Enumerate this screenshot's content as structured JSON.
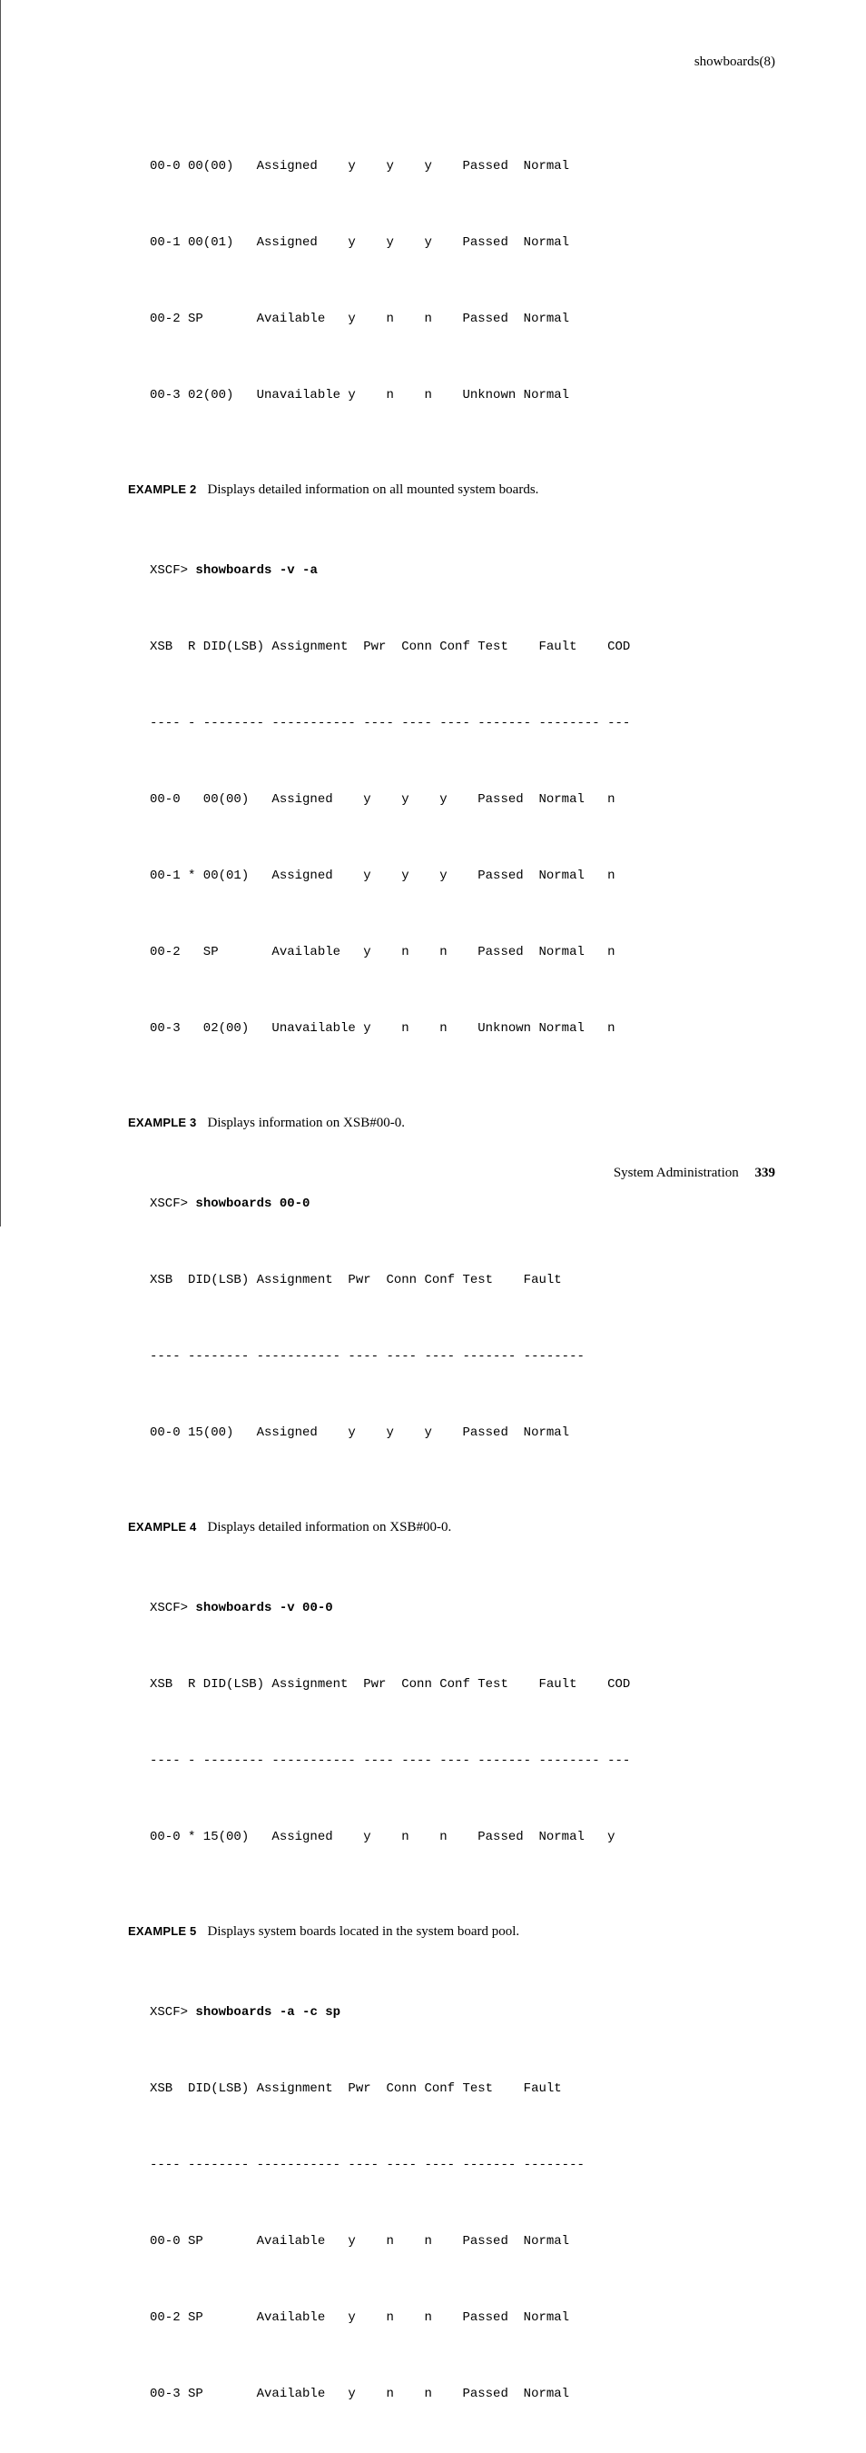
{
  "header": {
    "manpage": "showboards(8)"
  },
  "intro_rows": [
    "00-0 00(00)   Assigned    y    y    y    Passed  Normal",
    "00-1 00(01)   Assigned    y    y    y    Passed  Normal",
    "00-2 SP       Available   y    n    n    Passed  Normal",
    "00-3 02(00)   Unavailable y    n    n    Unknown Normal"
  ],
  "examples": [
    {
      "label": "EXAMPLE 2",
      "text": "Displays detailed information on all mounted system boards.",
      "cmd_prompt": "XSCF> ",
      "cmd": "showboards -v -a",
      "header_line": "XSB  R DID(LSB) Assignment  Pwr  Conn Conf Test    Fault    COD",
      "dash_line": "---- - -------- ----------- ---- ---- ---- ------- -------- ---",
      "rows": [
        "00-0   00(00)   Assigned    y    y    y    Passed  Normal   n",
        "00-1 * 00(01)   Assigned    y    y    y    Passed  Normal   n",
        "00-2   SP       Available   y    n    n    Passed  Normal   n",
        "00-3   02(00)   Unavailable y    n    n    Unknown Normal   n"
      ]
    },
    {
      "label": "EXAMPLE 3",
      "text": "Displays information on XSB#00-0.",
      "cmd_prompt": "XSCF> ",
      "cmd": "showboards 00-0",
      "header_line": "XSB  DID(LSB) Assignment  Pwr  Conn Conf Test    Fault",
      "dash_line": "---- -------- ----------- ---- ---- ---- ------- --------",
      "rows": [
        "00-0 15(00)   Assigned    y    y    y    Passed  Normal"
      ]
    },
    {
      "label": "EXAMPLE 4",
      "text": "Displays detailed information on XSB#00-0.",
      "cmd_prompt": "XSCF> ",
      "cmd": "showboards -v 00-0",
      "header_line": "XSB  R DID(LSB) Assignment  Pwr  Conn Conf Test    Fault    COD",
      "dash_line": "---- - -------- ----------- ---- ---- ---- ------- -------- ---",
      "rows": [
        "00-0 * 15(00)   Assigned    y    n    n    Passed  Normal   y"
      ]
    },
    {
      "label": "EXAMPLE 5",
      "text": "Displays system boards located in the system board pool.",
      "cmd_prompt": "XSCF> ",
      "cmd": "showboards -a -c sp",
      "header_line": "XSB  DID(LSB) Assignment  Pwr  Conn Conf Test    Fault",
      "dash_line": "---- -------- ----------- ---- ---- ---- ------- --------",
      "rows": [
        "00-0 SP       Available   y    n    n    Passed  Normal",
        "00-2 SP       Available   y    n    n    Passed  Normal",
        "00-3 SP       Available   y    n    n    Passed  Normal"
      ]
    }
  ],
  "footer": {
    "section": "System Administration",
    "page": "339"
  }
}
